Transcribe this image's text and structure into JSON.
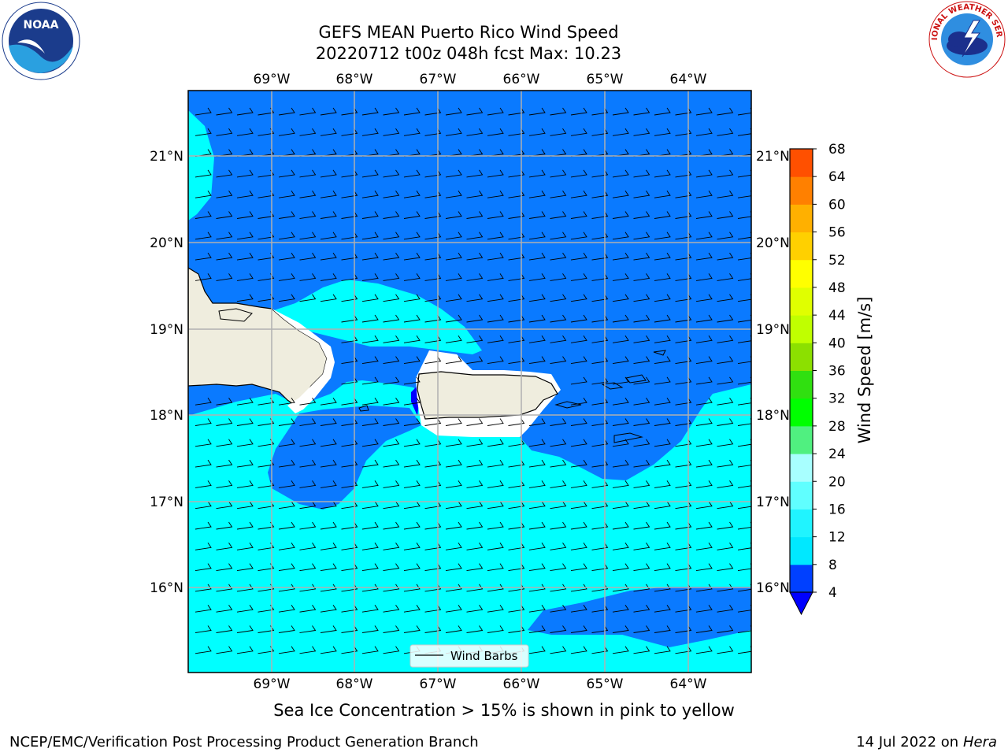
{
  "title_line1": "GEFS MEAN Puerto Rico Wind Speed",
  "title_line2": "20220712 t00z 048h fcst   Max: 10.23",
  "lon_labels": [
    "69°W",
    "68°W",
    "67°W",
    "66°W",
    "65°W",
    "64°W"
  ],
  "lat_labels": [
    "21°N",
    "20°N",
    "19°N",
    "18°N",
    "17°N",
    "16°N"
  ],
  "legend": {
    "label": "Wind Barbs"
  },
  "colorbar": {
    "title": "Wind Speed [m/s]",
    "ticks": [
      "4",
      "8",
      "12",
      "16",
      "20",
      "24",
      "28",
      "32",
      "36",
      "40",
      "44",
      "48",
      "52",
      "56",
      "60",
      "64",
      "68"
    ],
    "colors": [
      "#0040ff",
      "#00e8ff",
      "#20f4ff",
      "#60ffff",
      "#a8ffff",
      "#50f080",
      "#00ff00",
      "#30e010",
      "#8ce000",
      "#c0ff00",
      "#e0ff00",
      "#ffff00",
      "#ffd000",
      "#ffb000",
      "#ff8000",
      "#ff5000",
      "#ff2000",
      "#ff0000"
    ],
    "under_color": "#0000ff"
  },
  "wind_colors": {
    "range_4_8": "#0a7aff",
    "range_8_12": "#00ffff",
    "land": "#efedde"
  },
  "note": "Sea Ice Concentration > 15% is shown in pink to yellow",
  "footer_left": "NCEP/EMC/Verification Post Processing Product Generation Branch",
  "footer_date": "14 Jul 2022 on",
  "footer_machine": "Hera",
  "logos": {
    "left": "noaa-logo",
    "right": "nws-logo"
  }
}
